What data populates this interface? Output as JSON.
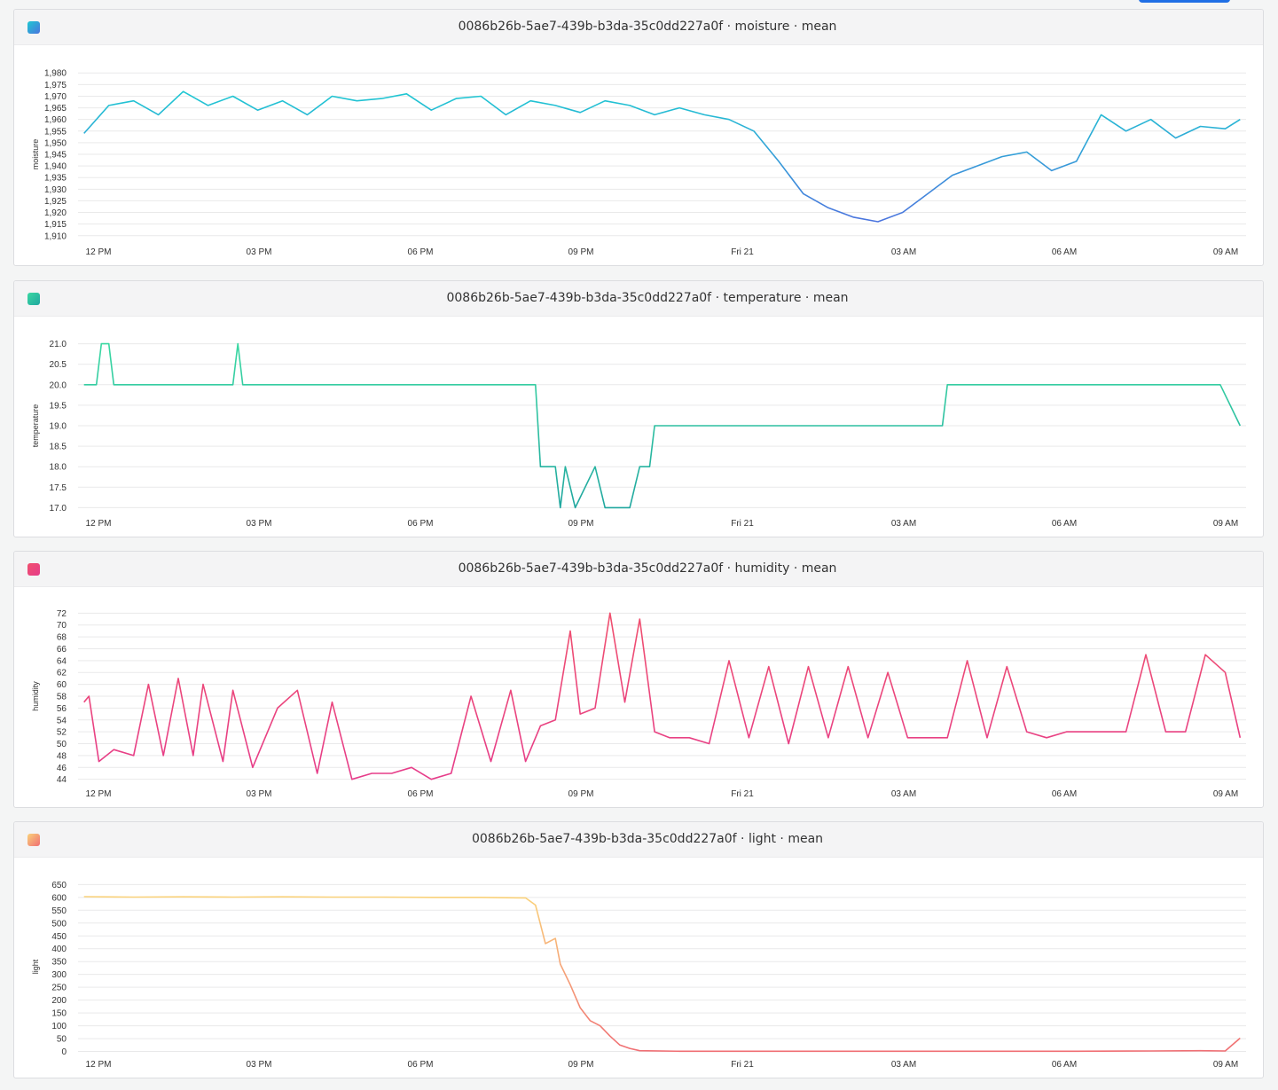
{
  "x_ticks": [
    "12 PM",
    "03 PM",
    "06 PM",
    "09 PM",
    "Fri 21",
    "03 AM",
    "06 AM",
    "09 AM"
  ],
  "chart_data": [
    {
      "type": "line",
      "title": "0086b26b-5ae7-439b-b3da-35c0dd227a0f · moisture · mean",
      "ylabel": "moisture",
      "ylim": [
        1908,
        1982
      ],
      "yticks": [
        1910,
        1915,
        1920,
        1925,
        1930,
        1935,
        1940,
        1945,
        1950,
        1955,
        1960,
        1965,
        1970,
        1975,
        1980
      ],
      "ytick_labels": [
        "1,910",
        "1,915",
        "1,920",
        "1,925",
        "1,930",
        "1,935",
        "1,940",
        "1,945",
        "1,950",
        "1,955",
        "1,960",
        "1,965",
        "1,970",
        "1,975",
        "1,980"
      ],
      "colors": [
        "#1ec8d2",
        "#4b74de"
      ],
      "xlim": [
        -0.12,
        23.42
      ],
      "x": [
        0,
        0.5,
        1,
        1.5,
        2,
        2.5,
        3,
        3.5,
        4,
        4.5,
        5,
        5.5,
        6,
        6.5,
        7,
        7.5,
        8,
        8.5,
        9,
        9.5,
        10,
        10.5,
        11,
        11.5,
        12,
        12.5,
        13,
        13.5,
        14,
        14.5,
        15,
        15.5,
        16,
        16.5,
        17,
        17.5,
        18,
        18.5,
        19,
        19.5,
        20,
        20.5,
        21,
        21.5,
        22,
        22.5,
        23,
        23.3
      ],
      "series": [
        {
          "values": [
            1954,
            1966,
            1968,
            1962,
            1972,
            1966,
            1970,
            1964,
            1968,
            1962,
            1970,
            1968,
            1969,
            1971,
            1964,
            1969,
            1970,
            1962,
            1968,
            1966,
            1963,
            1968,
            1966,
            1962,
            1965,
            1962,
            1960,
            1955,
            1942,
            1928,
            1922,
            1918,
            1916,
            1920,
            1928,
            1936,
            1940,
            1944,
            1946,
            1938,
            1942,
            1962,
            1955,
            1960,
            1952,
            1957,
            1956,
            1960
          ]
        }
      ]
    },
    {
      "type": "line",
      "title": "0086b26b-5ae7-439b-b3da-35c0dd227a0f · temperature · mean",
      "ylabel": "temperature",
      "ylim": [
        16.9,
        21.1
      ],
      "yticks": [
        17.0,
        17.5,
        18.0,
        18.5,
        19.0,
        19.5,
        20.0,
        20.5,
        21.0
      ],
      "ytick_labels": [
        "17.0",
        "17.5",
        "18.0",
        "18.5",
        "19.0",
        "19.5",
        "20.0",
        "20.5",
        "21.0"
      ],
      "colors": [
        "#3ad8a2",
        "#20a79f"
      ],
      "xlim": [
        -0.12,
        23.42
      ],
      "x": [
        0,
        0.25,
        0.35,
        0.5,
        0.6,
        3,
        3.1,
        3.2,
        3.3,
        9.1,
        9.2,
        9.5,
        9.6,
        9.7,
        9.9,
        10.3,
        10.5,
        11,
        11.2,
        11.4,
        11.5,
        12.1,
        12.4,
        17.3,
        17.4,
        22.9,
        23.3
      ],
      "series": [
        {
          "values": [
            20,
            20,
            21,
            21,
            20,
            20,
            21,
            20,
            20,
            20,
            18,
            18,
            17,
            18,
            17,
            18,
            17,
            17,
            18,
            18,
            19,
            19,
            19,
            19,
            20,
            20,
            19
          ]
        }
      ]
    },
    {
      "type": "line",
      "title": "0086b26b-5ae7-439b-b3da-35c0dd227a0f · humidity · mean",
      "ylabel": "humidity",
      "ylim": [
        43.5,
        72.5
      ],
      "yticks": [
        44,
        46,
        48,
        50,
        52,
        54,
        56,
        58,
        60,
        62,
        64,
        66,
        68,
        70,
        72
      ],
      "ytick_labels": [
        "44",
        "46",
        "48",
        "50",
        "52",
        "54",
        "56",
        "58",
        "60",
        "62",
        "64",
        "66",
        "68",
        "70",
        "72"
      ],
      "colors": [
        "#f0506e",
        "#e63c8a"
      ],
      "xlim": [
        -0.12,
        23.42
      ],
      "x": [
        0,
        0.1,
        0.3,
        0.6,
        1,
        1.3,
        1.6,
        1.9,
        2.2,
        2.4,
        2.8,
        3,
        3.4,
        3.9,
        4.3,
        4.7,
        5,
        5.4,
        5.8,
        6.2,
        6.6,
        7,
        7.4,
        7.8,
        8.2,
        8.6,
        8.9,
        9.2,
        9.5,
        9.8,
        10,
        10.3,
        10.6,
        10.9,
        11.2,
        11.5,
        11.8,
        12.2,
        12.6,
        13,
        13.4,
        13.8,
        14.2,
        14.6,
        15,
        15.4,
        15.8,
        16.2,
        16.6,
        17,
        17.4,
        17.8,
        18.2,
        18.6,
        19,
        19.4,
        19.8,
        20.2,
        20.6,
        21,
        21.4,
        21.8,
        22.2,
        22.6,
        23,
        23.3
      ],
      "series": [
        {
          "values": [
            57,
            58,
            47,
            49,
            48,
            60,
            48,
            61,
            48,
            60,
            47,
            59,
            46,
            56,
            59,
            45,
            57,
            44,
            45,
            45,
            46,
            44,
            45,
            58,
            47,
            59,
            47,
            53,
            54,
            69,
            55,
            56,
            72,
            57,
            71,
            52,
            51,
            51,
            50,
            64,
            51,
            63,
            50,
            63,
            51,
            63,
            51,
            62,
            51,
            51,
            51,
            64,
            51,
            63,
            52,
            51,
            52,
            52,
            52,
            52,
            65,
            52,
            52,
            65,
            62,
            51
          ]
        }
      ]
    },
    {
      "type": "line",
      "title": "0086b26b-5ae7-439b-b3da-35c0dd227a0f · light · mean",
      "ylabel": "light",
      "ylim": [
        -5,
        665
      ],
      "yticks": [
        0,
        50,
        100,
        150,
        200,
        250,
        300,
        350,
        400,
        450,
        500,
        550,
        600,
        650
      ],
      "ytick_labels": [
        "0",
        "50",
        "100",
        "150",
        "200",
        "250",
        "300",
        "350",
        "400",
        "450",
        "500",
        "550",
        "600",
        "650"
      ],
      "colors": [
        "#fad27a",
        "#f06e73"
      ],
      "xlim": [
        -0.12,
        23.42
      ],
      "x": [
        0,
        1,
        2,
        3,
        4,
        5,
        6,
        7,
        8,
        8.9,
        9.1,
        9.3,
        9.5,
        9.6,
        9.8,
        10,
        10.2,
        10.4,
        10.6,
        10.8,
        11,
        11.2,
        12,
        14,
        16,
        18,
        20,
        21.5,
        22.5,
        23,
        23.3
      ],
      "series": [
        {
          "values": [
            603,
            601,
            602,
            601,
            602,
            601,
            601,
            600,
            600,
            598,
            570,
            420,
            440,
            340,
            260,
            170,
            120,
            100,
            60,
            25,
            12,
            3,
            1,
            1,
            1,
            1,
            1,
            2,
            3,
            2,
            52
          ]
        }
      ]
    }
  ]
}
